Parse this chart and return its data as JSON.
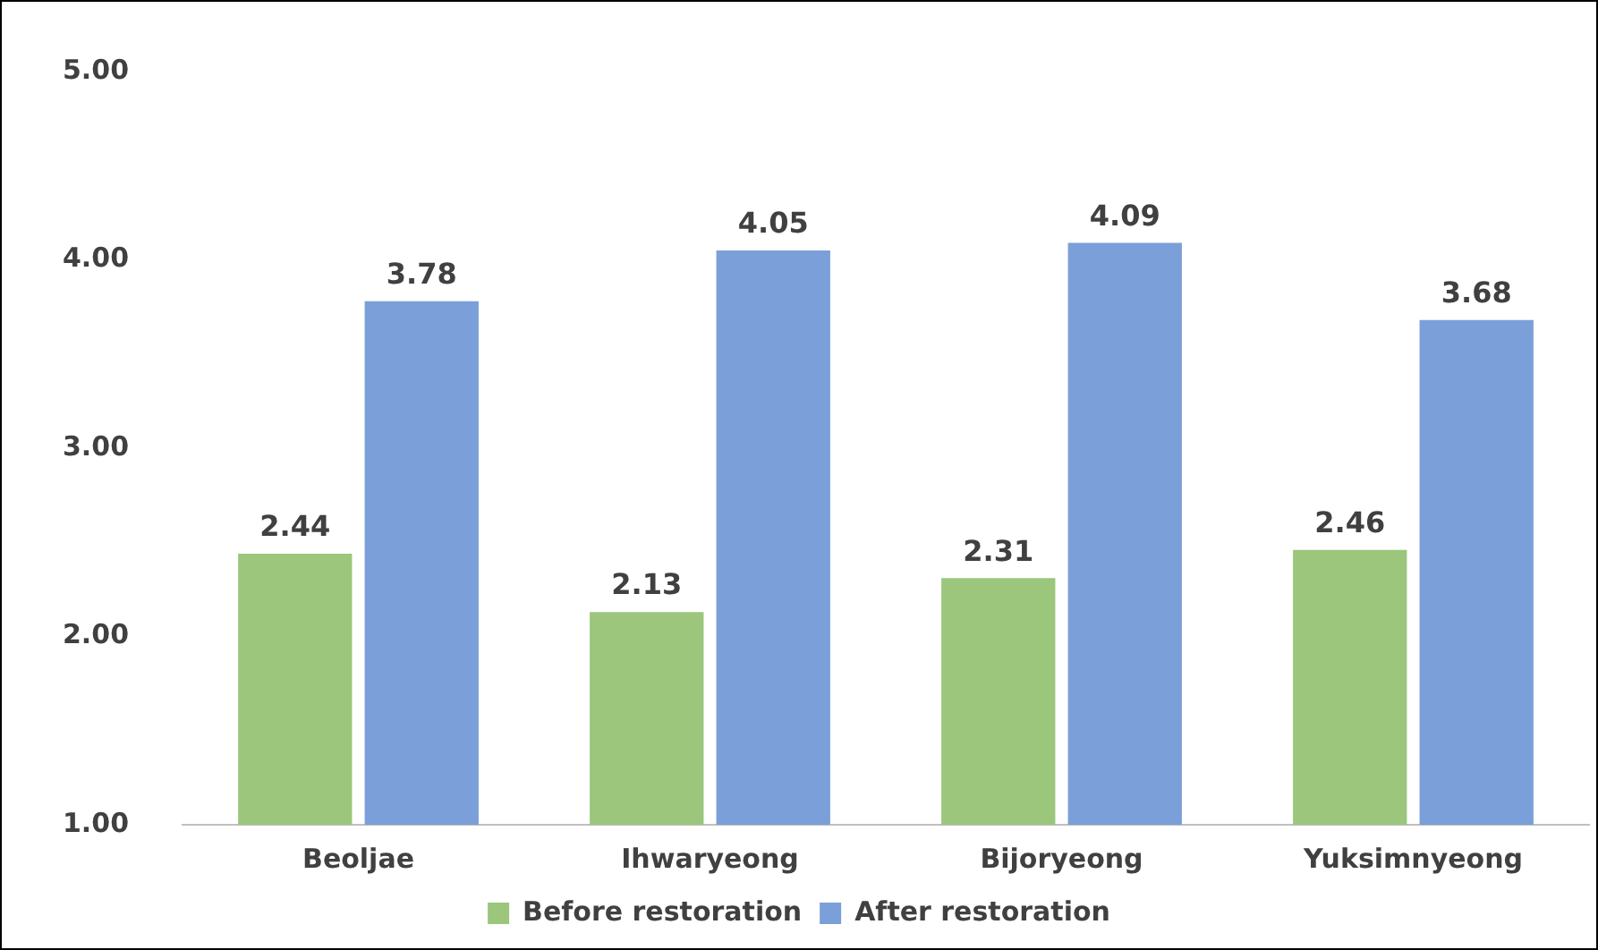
{
  "chart_data": {
    "type": "bar",
    "categories": [
      "Beoljae",
      "Ihwaryeong",
      "Bijoryeong",
      "Yuksimnyeong"
    ],
    "series": [
      {
        "name": "Before restoration",
        "color": "#9bc67c",
        "values": [
          2.44,
          2.13,
          2.31,
          2.46
        ]
      },
      {
        "name": "After restoration",
        "color": "#7b9fd8",
        "values": [
          3.78,
          4.05,
          4.09,
          3.68
        ]
      }
    ],
    "ylim": [
      1,
      5
    ],
    "yticks": [
      {
        "value": 1,
        "label": "1.00"
      },
      {
        "value": 2,
        "label": "2.00"
      },
      {
        "value": 3,
        "label": "3.00"
      },
      {
        "value": 4,
        "label": "4.00"
      },
      {
        "value": 5,
        "label": "5.00"
      }
    ],
    "grid": false,
    "legend": "bottom",
    "data_labels": true
  }
}
